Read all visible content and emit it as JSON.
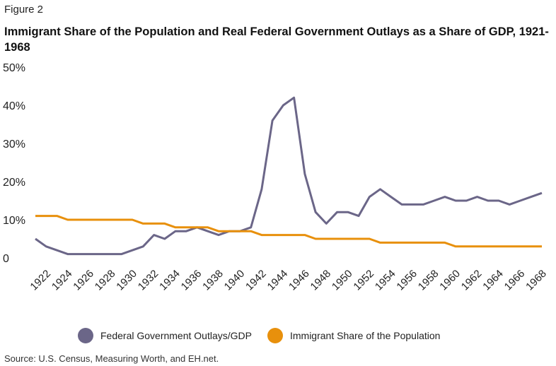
{
  "figure_label": "Figure 2",
  "chart_data": {
    "type": "line",
    "title": "Immigrant Share of the Population and Real Federal Government Outlays as a Share of GDP, 1921-1968",
    "xlabel": "",
    "ylabel": "",
    "ylim": [
      0,
      50
    ],
    "y_ticks": [
      "0",
      "10%",
      "20%",
      "30%",
      "40%",
      "50%"
    ],
    "y_tick_values": [
      0,
      10,
      20,
      30,
      40,
      50
    ],
    "x_tick_labels": [
      "1922",
      "1924",
      "1926",
      "1928",
      "1930",
      "1932",
      "1934",
      "1936",
      "1938",
      "1940",
      "1942",
      "1944",
      "1946",
      "1948",
      "1950",
      "1952",
      "1954",
      "1956",
      "1958",
      "1960",
      "1962",
      "1964",
      "1966",
      "1968"
    ],
    "grid": false,
    "legend_position": "bottom",
    "x": [
      1921,
      1922,
      1923,
      1924,
      1925,
      1926,
      1927,
      1928,
      1929,
      1930,
      1931,
      1932,
      1933,
      1934,
      1935,
      1936,
      1937,
      1938,
      1939,
      1940,
      1941,
      1942,
      1943,
      1944,
      1945,
      1946,
      1947,
      1948,
      1949,
      1950,
      1951,
      1952,
      1953,
      1954,
      1955,
      1956,
      1957,
      1958,
      1959,
      1960,
      1961,
      1962,
      1963,
      1964,
      1965,
      1966,
      1967,
      1968
    ],
    "series": [
      {
        "name": "Federal Government Outlays/GDP",
        "color": "#6b6688",
        "values": [
          5,
          3,
          2,
          1,
          1,
          1,
          1,
          1,
          1,
          2,
          3,
          6,
          5,
          7,
          7,
          8,
          7,
          6,
          7,
          7,
          8,
          18,
          36,
          40,
          42,
          22,
          12,
          9,
          12,
          12,
          11,
          16,
          18,
          16,
          14,
          14,
          14,
          15,
          16,
          15,
          15,
          16,
          15,
          15,
          14,
          15,
          16,
          17
        ]
      },
      {
        "name": "Immigrant Share of the Population",
        "color": "#e8900c",
        "values": [
          11,
          11,
          11,
          10,
          10,
          10,
          10,
          10,
          10,
          10,
          9,
          9,
          9,
          8,
          8,
          8,
          8,
          7,
          7,
          7,
          7,
          6,
          6,
          6,
          6,
          6,
          5,
          5,
          5,
          5,
          5,
          5,
          4,
          4,
          4,
          4,
          4,
          4,
          4,
          3,
          3,
          3,
          3,
          3,
          3,
          3,
          3,
          3
        ]
      }
    ]
  },
  "source": "Source: U.S. Census, Measuring Worth, and EH.net."
}
